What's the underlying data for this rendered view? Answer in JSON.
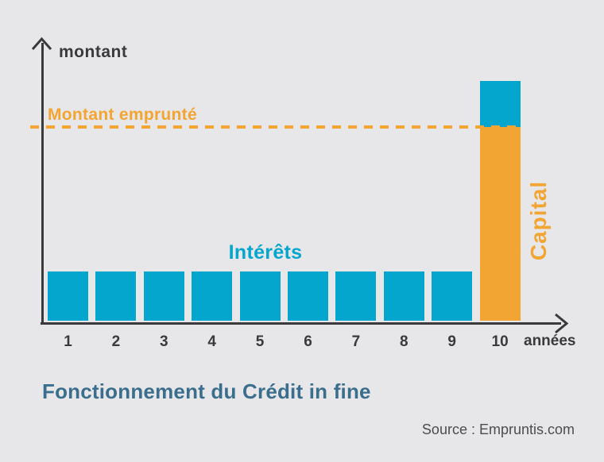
{
  "title": "Fonctionnement du Crédit in fine",
  "source": "Source : Empruntis.com",
  "colors": {
    "background": "#e7e7e9",
    "interest_blue": "#05a6ce",
    "capital_orange": "#f2a532",
    "axis_dark": "#3a3a3c",
    "title_teal": "#3a6e8c",
    "source_gray": "#4d4d4f"
  },
  "chart": {
    "y_axis_label": "montant",
    "x_axis_label": "années",
    "reference_line_label": "Montant emprunté",
    "interest_series_label": "Intérêts",
    "capital_series_label": "Capital"
  },
  "chart_data": {
    "type": "bar",
    "title": "Fonctionnement du Crédit in fine",
    "xlabel": "années",
    "ylabel": "montant",
    "categories": [
      "1",
      "2",
      "3",
      "4",
      "5",
      "6",
      "7",
      "8",
      "9",
      "10"
    ],
    "series": [
      {
        "name": "Intérêts",
        "color": "#05a6ce",
        "values": [
          62,
          62,
          62,
          62,
          62,
          62,
          62,
          62,
          62,
          58
        ]
      },
      {
        "name": "Capital",
        "color": "#f2a532",
        "values": [
          0,
          0,
          0,
          0,
          0,
          0,
          0,
          0,
          0,
          244
        ]
      }
    ],
    "stacked": true,
    "reference_line": {
      "label": "Montant emprunté",
      "value": 244,
      "style": "dashed",
      "color": "#f2a532"
    },
    "units": "relative height (no numeric scale shown on axes)",
    "grid": false,
    "legend": "inline text labels (Intérêts above blue bars, Capital rotated beside orange bar)"
  }
}
